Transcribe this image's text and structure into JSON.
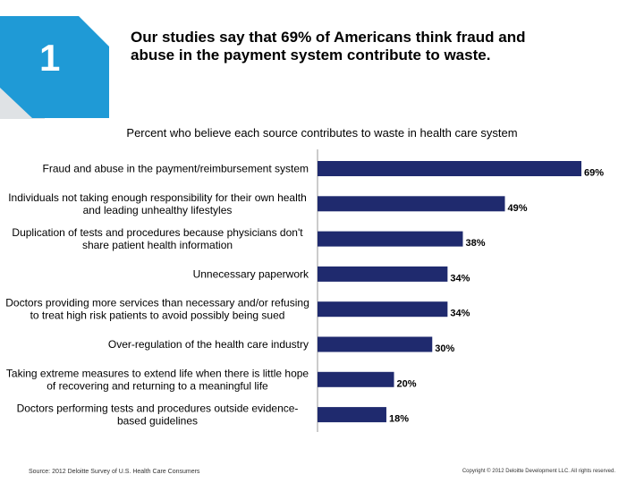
{
  "badge": {
    "number": "1"
  },
  "headline": "Our studies say that 69% of Americans think fraud and abuse in the payment system contribute to waste.",
  "colors": {
    "badge": "#1f9ad6",
    "bar": "#1f2a6e"
  },
  "chart_data": {
    "type": "bar",
    "orientation": "horizontal",
    "title": "Percent who believe each source contributes to waste in health care system",
    "categories": [
      [
        "Fraud and abuse in the payment/reimbursement system"
      ],
      [
        "Individuals not taking enough responsibility for their own health",
        "and leading unhealthy lifestyles"
      ],
      [
        "Duplication of tests and procedures because physicians don't",
        "share patient health information"
      ],
      [
        "Unnecessary paperwork"
      ],
      [
        "Doctors providing more services than necessary and/or refusing",
        "to treat high risk patients to avoid possibly being sued"
      ],
      [
        "Over-regulation of the health care industry"
      ],
      [
        "Taking extreme measures to extend life when there is little hope",
        "of recovering and returning to a meaningful life"
      ],
      [
        "Doctors performing tests and procedures outside evidence-",
        "based guidelines"
      ]
    ],
    "values": [
      69,
      49,
      38,
      34,
      34,
      30,
      20,
      18
    ],
    "data_labels": [
      "69%",
      "49%",
      "38%",
      "34%",
      "34%",
      "30%",
      "20%",
      "18%"
    ],
    "xlim": [
      0,
      69
    ],
    "grid": false
  },
  "footer": {
    "source": "Source: 2012 Deloitte Survey of U.S. Health Care Consumers",
    "copyright": "Copyright © 2012 Deloitte Development LLC. All rights reserved."
  }
}
